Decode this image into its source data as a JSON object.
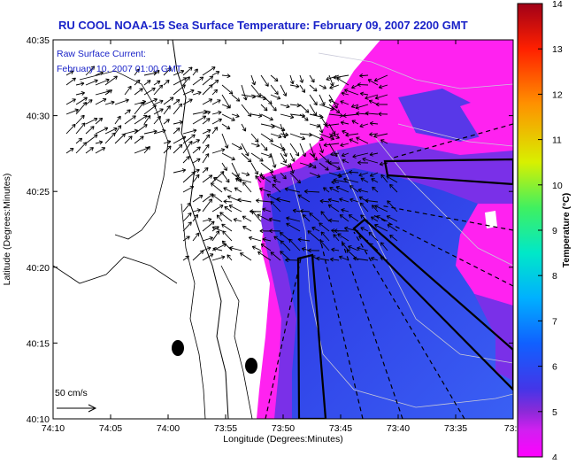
{
  "title": "RU COOL  NOAA-15  Sea Surface Temperature:  February 09, 2007 2200 GMT",
  "current_note": {
    "line1": "Raw Surface Current:",
    "line2": "February 10, 2007 01:00 GMT"
  },
  "scale_label": "50 cm/s",
  "axes": {
    "xlabel": "Longitude (Degrees:Minutes)",
    "ylabel": "Latitude (Degrees:Minutes)",
    "x_ticks": [
      "74:10",
      "74:05",
      "74:00",
      "73:55",
      "73:50",
      "73:45",
      "73:40",
      "73:35",
      "73:3"
    ],
    "y_ticks": [
      "40:35",
      "40:30",
      "40:25",
      "40:20",
      "40:15",
      "40:10"
    ]
  },
  "colorbar": {
    "label": "Temperature (°C)",
    "ticks": [
      "14",
      "13",
      "12",
      "11",
      "10",
      "9",
      "8",
      "7",
      "6",
      "5",
      "4"
    ],
    "colors": [
      "#ff00ff",
      "#d020f0",
      "#8c2ad8",
      "#4436e8",
      "#1060ff",
      "#00b0ff",
      "#00e8c8",
      "#40f060",
      "#d8f000",
      "#ff9000",
      "#ff2000",
      "#a00018"
    ]
  },
  "palette": {
    "land": "#ffffff",
    "magenta": "#ff22f0",
    "violet": "#7a30e8",
    "blue": "#2244ee",
    "cold_blue": "#3255f2",
    "title_blue": "#1a23c8"
  }
}
